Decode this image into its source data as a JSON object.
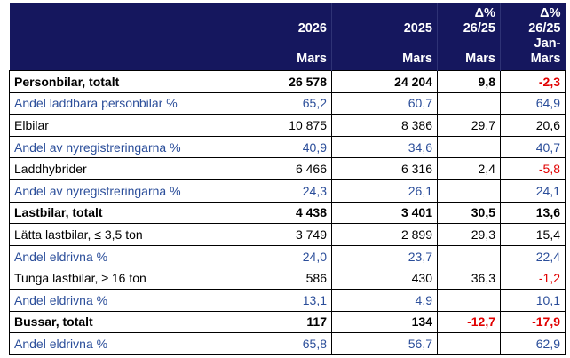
{
  "header": {
    "row1": [
      "",
      "2026",
      "2025",
      "Δ%\n26/25",
      "Δ%\n26/25"
    ],
    "col3_top": "Δ%",
    "col3_mid": "26/25",
    "col4_top": "Δ%",
    "col4_mid": "26/25",
    "row2": [
      "",
      "Mars",
      "Mars",
      "Mars",
      "Jan-Mars"
    ]
  },
  "rows": [
    {
      "label": "Personbilar, totalt",
      "y2026": "26 578",
      "y2025": "24 204",
      "d_mars": "9,8",
      "d_ytd": "-2,3",
      "style": "bold"
    },
    {
      "label": "Andel laddbara personbilar %",
      "y2026": "65,2",
      "y2025": "60,7",
      "d_mars": "",
      "d_ytd": "64,9",
      "style": "share"
    },
    {
      "label": "Elbilar",
      "y2026": "10 875",
      "y2025": "8 386",
      "d_mars": "29,7",
      "d_ytd": "20,6",
      "style": "normal"
    },
    {
      "label": "Andel av nyregistreringarna %",
      "y2026": "40,9",
      "y2025": "34,6",
      "d_mars": "",
      "d_ytd": "40,7",
      "style": "share"
    },
    {
      "label": "Laddhybrider",
      "y2026": "6 466",
      "y2025": "6 316",
      "d_mars": "2,4",
      "d_ytd": "-5,8",
      "style": "normal"
    },
    {
      "label": "Andel av nyregistreringarna %",
      "y2026": "24,3",
      "y2025": "26,1",
      "d_mars": "",
      "d_ytd": "24,1",
      "style": "share"
    },
    {
      "label": "Lastbilar, totalt",
      "y2026": "4 438",
      "y2025": "3 401",
      "d_mars": "30,5",
      "d_ytd": "13,6",
      "style": "bold"
    },
    {
      "label": "Lätta lastbilar, ≤ 3,5 ton",
      "y2026": "3 749",
      "y2025": "2 899",
      "d_mars": "29,3",
      "d_ytd": "15,4",
      "style": "normal"
    },
    {
      "label": "Andel eldrivna %",
      "y2026": "24,0",
      "y2025": "23,7",
      "d_mars": "",
      "d_ytd": "22,4",
      "style": "share"
    },
    {
      "label": "Tunga lastbilar, ≥ 16 ton",
      "y2026": "586",
      "y2025": "430",
      "d_mars": "36,3",
      "d_ytd": "-1,2",
      "style": "normal"
    },
    {
      "label": "Andel eldrivna %",
      "y2026": "13,1",
      "y2025": "4,9",
      "d_mars": "",
      "d_ytd": "10,1",
      "style": "share"
    },
    {
      "label": "Bussar, totalt",
      "y2026": "117",
      "y2025": "134",
      "d_mars": "-12,7",
      "d_ytd": "-17,9",
      "style": "bold"
    },
    {
      "label": "Andel eldrivna %",
      "y2026": "65,8",
      "y2025": "56,7",
      "d_mars": "",
      "d_ytd": "62,9",
      "style": "share"
    }
  ],
  "colors": {
    "header_bg": "#15175e",
    "share_text": "#2b4e9a",
    "negative": "#e10000"
  }
}
